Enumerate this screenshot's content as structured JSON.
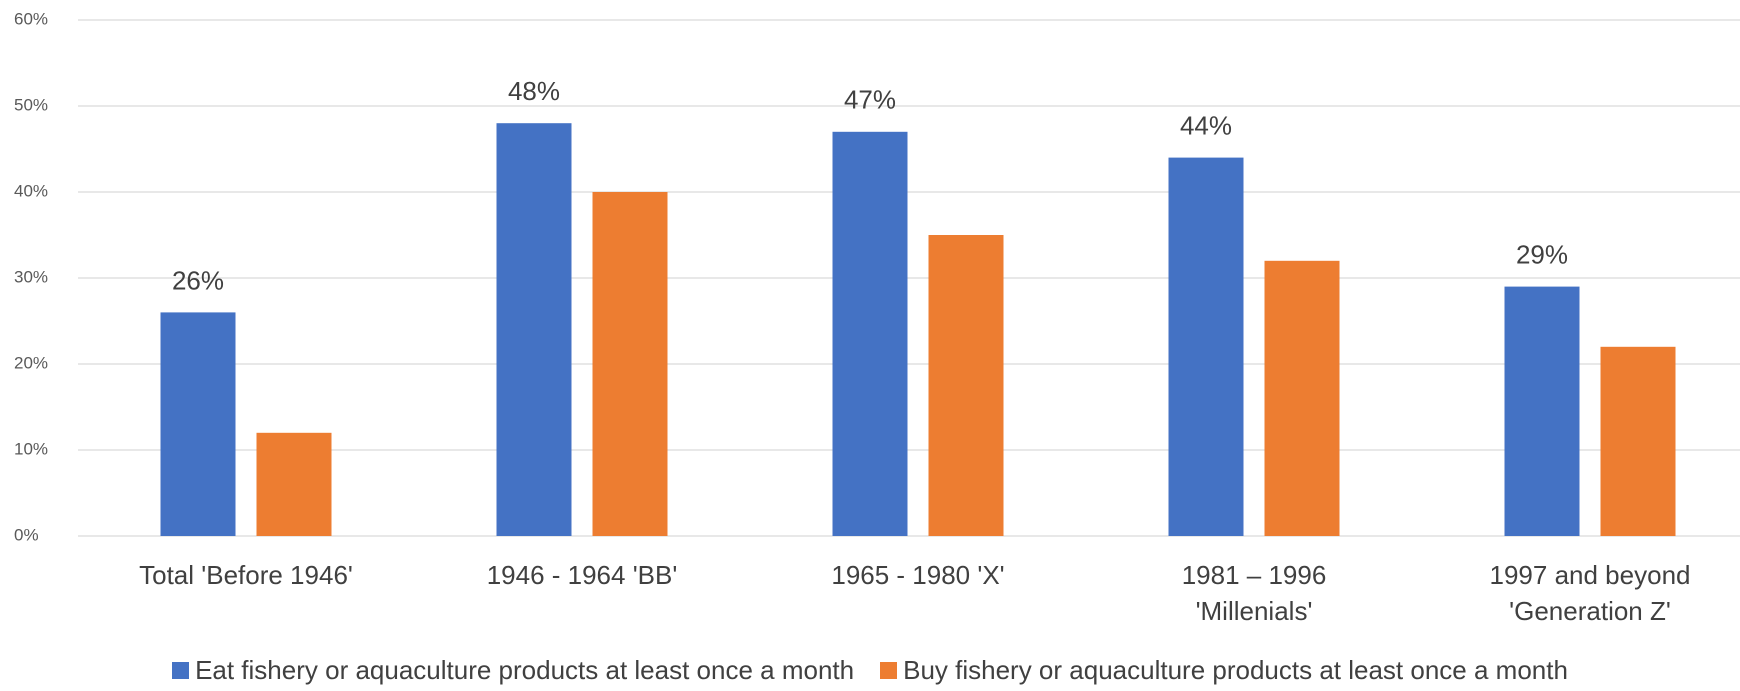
{
  "chart_data": {
    "type": "bar",
    "categories": [
      "Total 'Before 1946'",
      "1946 - 1964 'BB'",
      "1965 - 1980 'X'",
      "1981 – 1996 'Millenials'",
      "1997 and beyond 'Generation Z'"
    ],
    "series": [
      {
        "name": "Eat fishery or aquaculture products at least once a month",
        "color": "#4472c4",
        "values": [
          26,
          48,
          47,
          44,
          29
        ],
        "value_labels": [
          "26%",
          "48%",
          "47%",
          "44%",
          "29%"
        ]
      },
      {
        "name": "Buy fishery or aquaculture products at least once a month",
        "color": "#ed7d31",
        "values": [
          12,
          40,
          35,
          32,
          22
        ]
      }
    ],
    "ylim": [
      0,
      60
    ],
    "yticks": [
      {
        "value": 0,
        "label": "0%"
      },
      {
        "value": 10,
        "label": "10%"
      },
      {
        "value": 20,
        "label": "20%"
      },
      {
        "value": 30,
        "label": "30%"
      },
      {
        "value": 40,
        "label": "40%"
      },
      {
        "value": 50,
        "label": "50%"
      },
      {
        "value": 60,
        "label": "60%"
      }
    ],
    "grid": true,
    "legend": "bottom"
  }
}
